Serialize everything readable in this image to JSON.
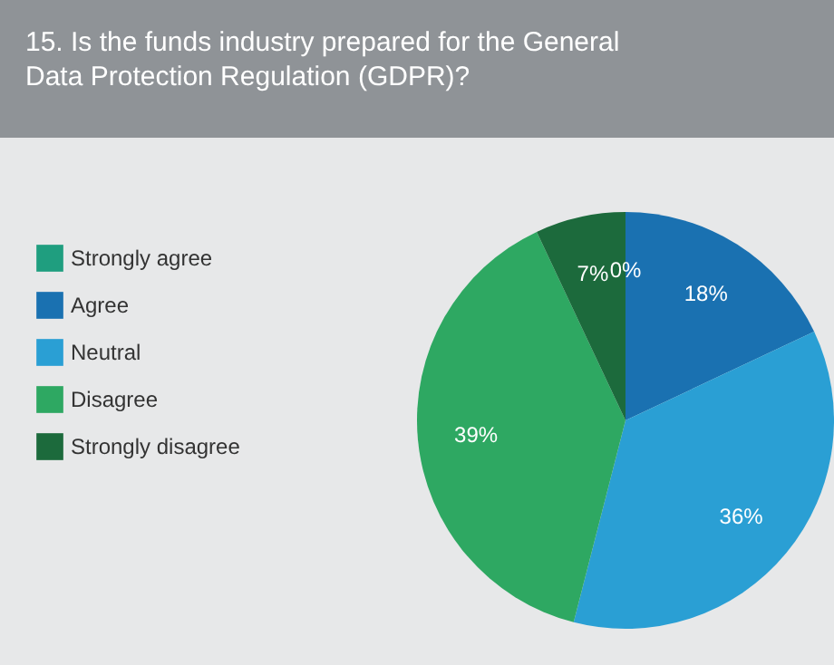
{
  "chart_data": {
    "type": "pie",
    "title": "15. Is the funds industry prepared for the General Data Protection Regulation (GDPR)?",
    "categories": [
      "Strongly agree",
      "Agree",
      "Neutral",
      "Disagree",
      "Strongly disagree"
    ],
    "values": [
      0,
      18,
      36,
      39,
      7
    ],
    "colors": [
      "#1f9e7f",
      "#1a71b1",
      "#2a9fd4",
      "#2ea862",
      "#1c6a3c"
    ],
    "value_labels": [
      "0%",
      "18%",
      "36%",
      "39%",
      "7%"
    ],
    "legend": "left"
  }
}
